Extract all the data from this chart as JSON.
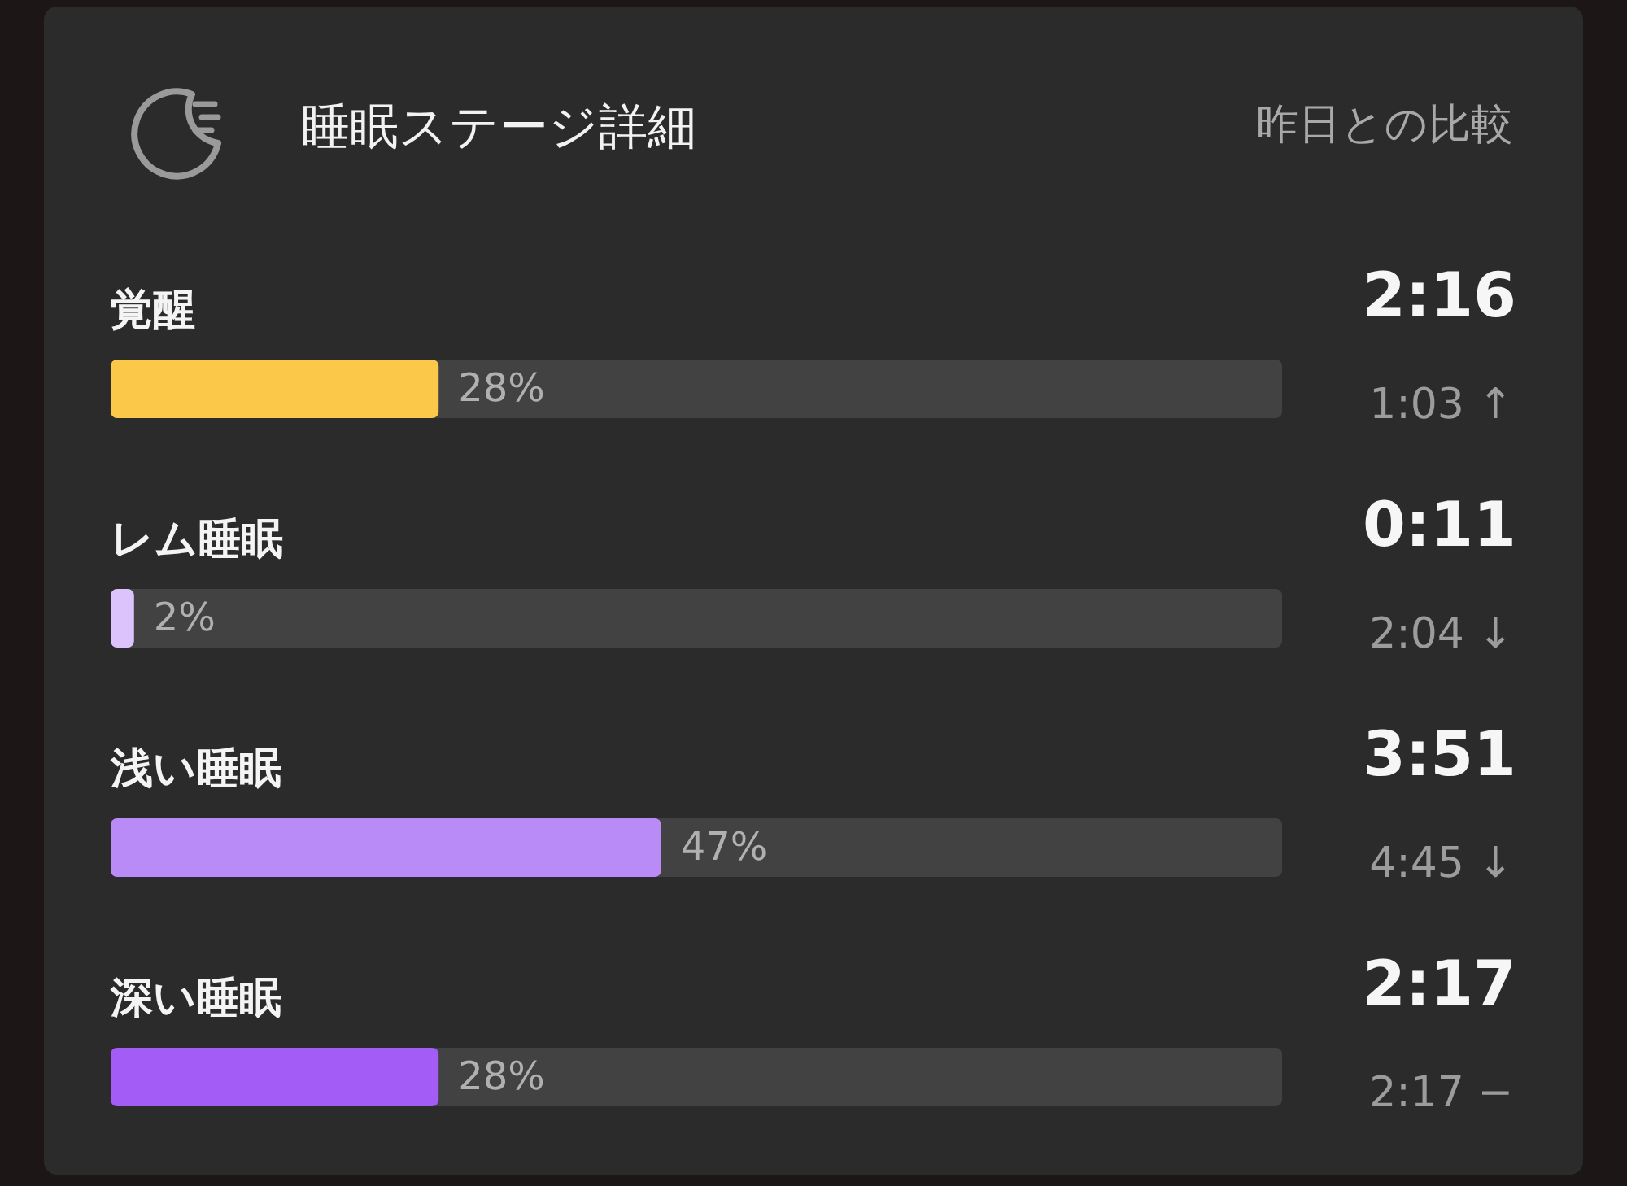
{
  "chart_data": {
    "type": "bar",
    "orientation": "horizontal",
    "title": "睡眠ステージ詳細",
    "subtitle": "昨日との比較",
    "categories": [
      "覚醒",
      "レム睡眠",
      "浅い睡眠",
      "深い睡眠"
    ],
    "values": [
      28,
      2,
      47,
      28
    ],
    "value_labels": [
      "28%",
      "2%",
      "47%",
      "28%"
    ],
    "colors": [
      "#fcc84a",
      "#dcc3fb",
      "#b98bf7",
      "#a35cf6"
    ],
    "xlim": [
      0,
      100
    ],
    "annotations": [
      "2:16",
      "1:03 ↑",
      "0:11",
      "2:04 ↓",
      "3:51",
      "4:45 ↓",
      "2:17",
      "2:17 −"
    ]
  }
}
